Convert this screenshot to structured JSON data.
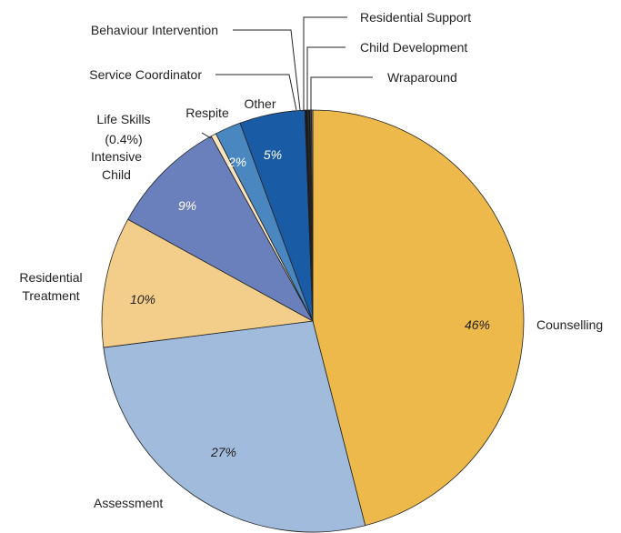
{
  "chart_data": {
    "type": "pie",
    "categories": [
      "Counselling",
      "Assessment",
      "Residential Treatment",
      "Intensive Child",
      "Life Skills",
      "Respite",
      "Other",
      "Service Coordinator",
      "Behaviour Intervention",
      "Residential Support",
      "Child Development",
      "Wraparound"
    ],
    "values": [
      46,
      27,
      10,
      9,
      0.4,
      2,
      5,
      0.2,
      0.1,
      0.1,
      0.1,
      0.1
    ],
    "value_labels": [
      "46%",
      "27%",
      "10%",
      "9%",
      "(0.4%)",
      "2%",
      "5%",
      null,
      null,
      null,
      null,
      null
    ],
    "colors": [
      "#edb94a",
      "#a0bbdb",
      "#f3ce8a",
      "#6a80bc",
      "#f9e3bd",
      "#4a87c1",
      "#1a5ba6",
      "#1a1a1a",
      "#3a3a3a",
      "#111111",
      "#555555",
      "#8a94a3"
    ]
  }
}
